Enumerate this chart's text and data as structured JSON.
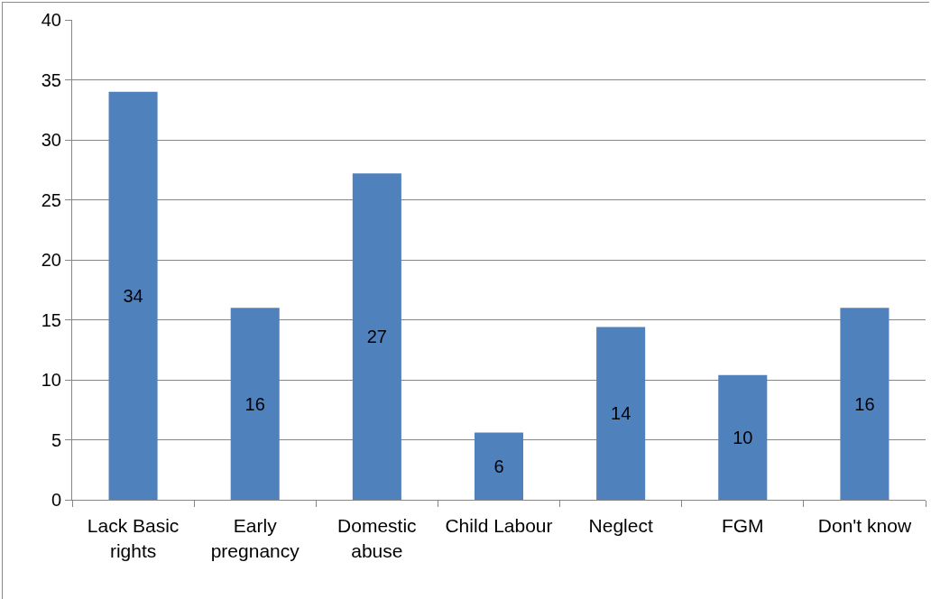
{
  "chart_data": {
    "type": "bar",
    "categories": [
      "Lack Basic rights",
      "Early pregnancy",
      "Domestic abuse",
      "Child Labour",
      "Neglect",
      "FGM",
      "Don't know"
    ],
    "values": [
      34,
      16,
      27.2,
      5.6,
      14.4,
      10.4,
      16
    ],
    "value_labels": [
      "34",
      "16",
      "27",
      "6",
      "14",
      "10",
      "16"
    ],
    "color": "#4f81bd",
    "ylim": [
      0,
      40
    ],
    "yticks": [
      0,
      5,
      10,
      15,
      20,
      25,
      30,
      35,
      40
    ],
    "grid": "y"
  }
}
